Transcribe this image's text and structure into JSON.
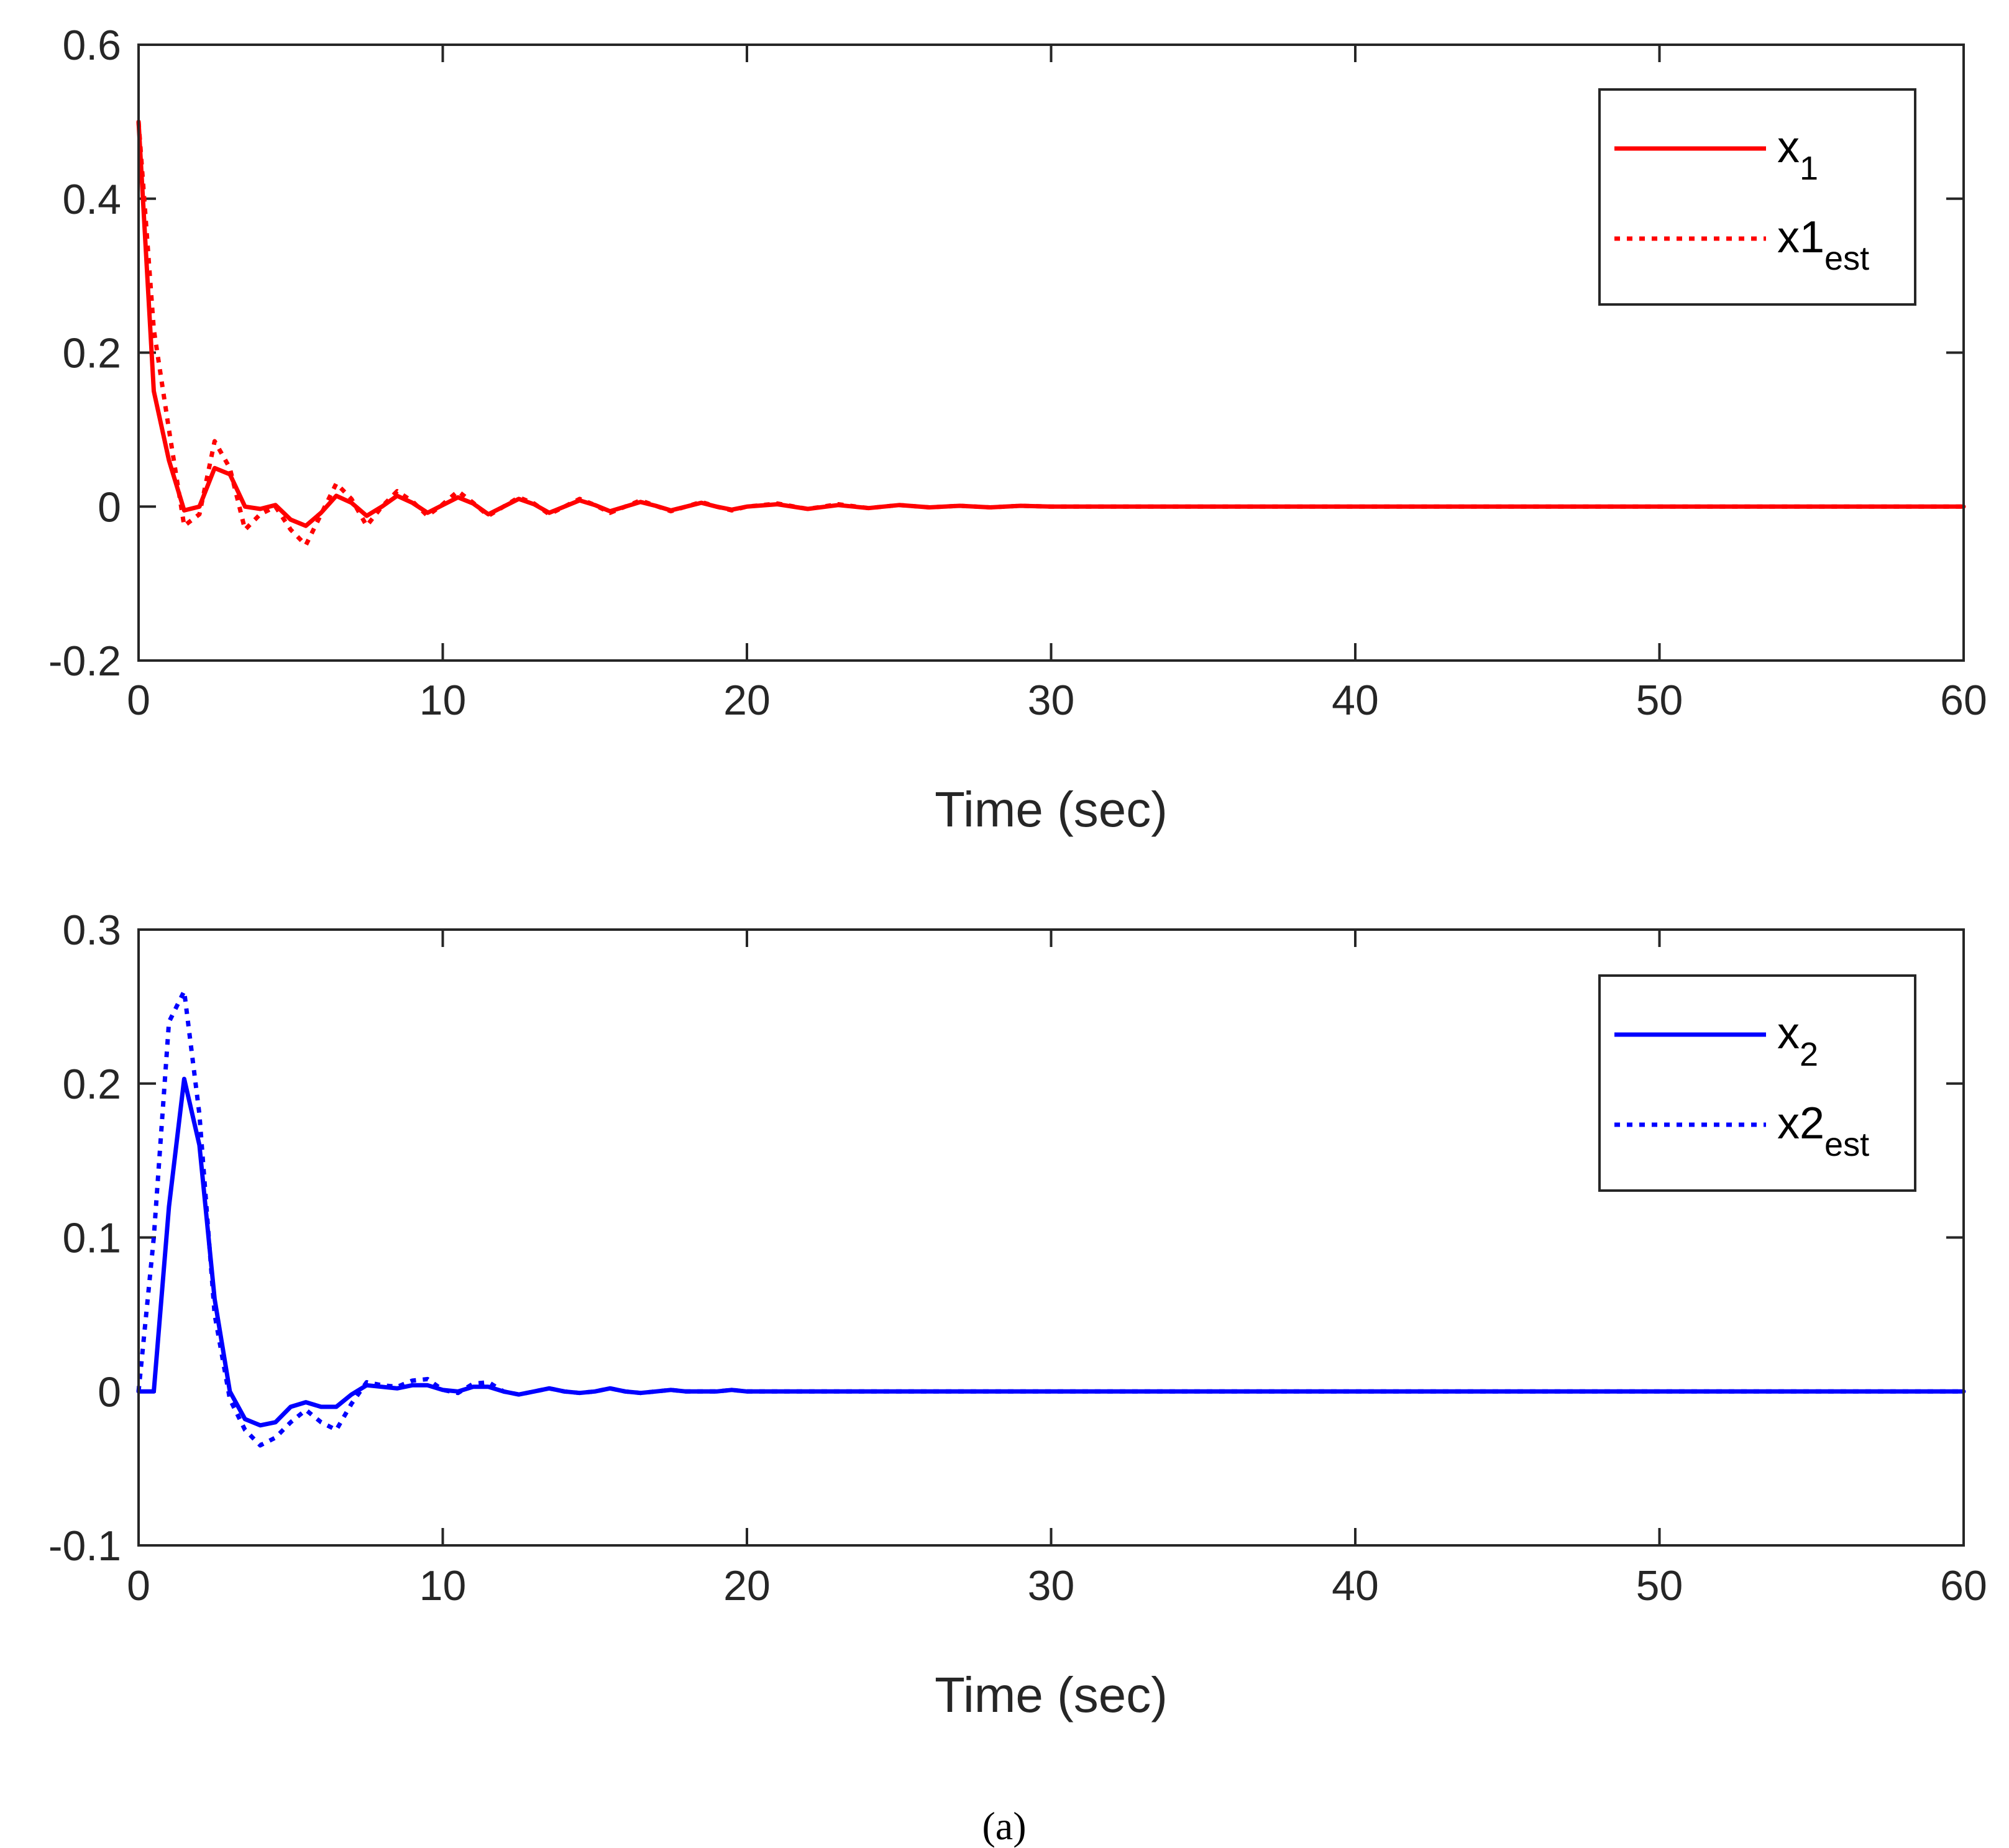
{
  "chart_data": [
    {
      "type": "line",
      "xlabel": "Time (sec)",
      "ylabel": "",
      "xlim": [
        0,
        60
      ],
      "ylim": [
        -0.2,
        0.6
      ],
      "xticks": [
        0,
        10,
        20,
        30,
        40,
        50,
        60
      ],
      "yticks": [
        -0.2,
        0,
        0.2,
        0.4,
        0.6
      ],
      "xtick_labels": [
        "0",
        "10",
        "20",
        "30",
        "40",
        "50",
        "60"
      ],
      "ytick_labels": [
        "-0.2",
        "0",
        "0.2",
        "0.4",
        "0.6"
      ],
      "legend_position": "top-right",
      "series": [
        {
          "name": "x_1",
          "legend_main": "x",
          "legend_sub": "1",
          "color": "#ff0000",
          "style": "solid",
          "x": [
            0,
            0.5,
            1,
            1.5,
            2,
            2.5,
            3,
            3.5,
            4,
            4.5,
            5,
            5.5,
            6,
            6.5,
            7,
            7.5,
            8,
            8.5,
            9,
            9.5,
            10,
            10.5,
            11,
            11.5,
            12,
            12.5,
            13,
            13.5,
            14,
            14.5,
            15,
            15.5,
            16,
            16.5,
            17,
            17.5,
            18,
            18.5,
            19,
            19.5,
            20,
            21,
            22,
            23,
            24,
            25,
            26,
            27,
            28,
            29,
            30,
            35,
            40,
            45,
            50,
            55,
            60
          ],
          "y": [
            0.5,
            0.15,
            0.06,
            -0.005,
            0.0,
            0.05,
            0.042,
            0.0,
            -0.003,
            0.002,
            -0.017,
            -0.025,
            -0.008,
            0.014,
            0.005,
            -0.012,
            0.0,
            0.014,
            0.005,
            -0.008,
            0.002,
            0.012,
            0.004,
            -0.01,
            0.0,
            0.01,
            0.003,
            -0.008,
            0.0,
            0.008,
            0.002,
            -0.006,
            0.0,
            0.006,
            0.001,
            -0.005,
            0.0,
            0.005,
            0.0,
            -0.004,
            0.0,
            0.003,
            -0.003,
            0.002,
            -0.002,
            0.002,
            -0.001,
            0.001,
            -0.001,
            0.001,
            0.0,
            0.0,
            0.0,
            0.0,
            0.0,
            0.0,
            0.0
          ]
        },
        {
          "name": "x1_est",
          "legend_main": "x1",
          "legend_sub": "est",
          "color": "#ff0000",
          "style": "dotted",
          "x": [
            0,
            0.5,
            1,
            1.5,
            2,
            2.5,
            3,
            3.5,
            4,
            4.5,
            5,
            5.5,
            6,
            6.5,
            7,
            7.5,
            8,
            8.5,
            9,
            9.5,
            10,
            10.5,
            11,
            11.5,
            12,
            12.5,
            13,
            13.5,
            14,
            14.5,
            15,
            15.5,
            16,
            16.5,
            17,
            17.5,
            18,
            18.5,
            19,
            19.5,
            20,
            21,
            22,
            23,
            24,
            25,
            26,
            27,
            28,
            29,
            30,
            35,
            40,
            45,
            50,
            55,
            60
          ],
          "y": [
            0.5,
            0.23,
            0.1,
            -0.025,
            -0.01,
            0.085,
            0.05,
            -0.03,
            -0.01,
            0.0,
            -0.03,
            -0.05,
            -0.01,
            0.03,
            0.01,
            -0.025,
            0.0,
            0.02,
            0.007,
            -0.012,
            0.003,
            0.02,
            0.005,
            -0.012,
            0.0,
            0.012,
            0.004,
            -0.01,
            0.0,
            0.01,
            0.002,
            -0.008,
            0.0,
            0.008,
            0.001,
            -0.006,
            0.0,
            0.006,
            0.0,
            -0.005,
            0.0,
            0.004,
            -0.003,
            0.003,
            -0.002,
            0.002,
            -0.001,
            0.001,
            -0.001,
            0.001,
            0.0,
            0.0,
            0.0,
            0.0,
            0.0,
            0.0,
            0.0
          ]
        }
      ]
    },
    {
      "type": "line",
      "xlabel": "Time (sec)",
      "ylabel": "",
      "xlim": [
        0,
        60
      ],
      "ylim": [
        -0.1,
        0.3
      ],
      "xticks": [
        0,
        10,
        20,
        30,
        40,
        50,
        60
      ],
      "yticks": [
        -0.1,
        0,
        0.1,
        0.2,
        0.3
      ],
      "xtick_labels": [
        "0",
        "10",
        "20",
        "30",
        "40",
        "50",
        "60"
      ],
      "ytick_labels": [
        "-0.1",
        "0",
        "0.1",
        "0.2",
        "0.3"
      ],
      "legend_position": "top-right",
      "series": [
        {
          "name": "x_2",
          "legend_main": "x",
          "legend_sub": "2",
          "color": "#0000ff",
          "style": "solid",
          "x": [
            0,
            0.5,
            1,
            1.5,
            2,
            2.5,
            3,
            3.5,
            4,
            4.5,
            5,
            5.5,
            6,
            6.5,
            7,
            7.5,
            8,
            8.5,
            9,
            9.5,
            10,
            10.5,
            11,
            11.5,
            12,
            12.5,
            13,
            13.5,
            14,
            14.5,
            15,
            15.5,
            16,
            16.5,
            17,
            17.5,
            18,
            18.5,
            19,
            19.5,
            20,
            21,
            22,
            23,
            24,
            25,
            26,
            27,
            28,
            29,
            30,
            35,
            40,
            45,
            50,
            55,
            60
          ],
          "y": [
            0.0,
            0.0,
            0.12,
            0.203,
            0.16,
            0.06,
            0.0,
            -0.018,
            -0.022,
            -0.02,
            -0.01,
            -0.007,
            -0.01,
            -0.01,
            -0.002,
            0.004,
            0.003,
            0.002,
            0.004,
            0.004,
            0.001,
            0.0,
            0.003,
            0.003,
            0.0,
            -0.002,
            0.0,
            0.002,
            0.0,
            -0.001,
            0.0,
            0.002,
            0.0,
            -0.001,
            0.0,
            0.001,
            0.0,
            0.0,
            0.0,
            0.001,
            0.0,
            0.0,
            0.0,
            0.0,
            0.0,
            0.0,
            0.0,
            0.0,
            0.0,
            0.0,
            0.0,
            0.0,
            0.0,
            0.0,
            0.0,
            0.0,
            0.0
          ]
        },
        {
          "name": "x2_est",
          "legend_main": "x2",
          "legend_sub": "est",
          "color": "#0000ff",
          "style": "dotted",
          "x": [
            0,
            0.5,
            1,
            1.5,
            2,
            2.5,
            3,
            3.5,
            4,
            4.5,
            5,
            5.5,
            6,
            6.5,
            7,
            7.5,
            8,
            8.5,
            9,
            9.5,
            10,
            10.5,
            11,
            11.5,
            12,
            12.5,
            13,
            13.5,
            14,
            14.5,
            15,
            15.5,
            16,
            16.5,
            17,
            17.5,
            18,
            18.5,
            19,
            19.5,
            20,
            21,
            22,
            23,
            24,
            25,
            26,
            27,
            28,
            29,
            30,
            35,
            40,
            45,
            50,
            55,
            60
          ],
          "y": [
            0.0,
            0.1,
            0.24,
            0.26,
            0.18,
            0.05,
            -0.005,
            -0.025,
            -0.035,
            -0.03,
            -0.02,
            -0.012,
            -0.02,
            -0.025,
            -0.008,
            0.006,
            0.004,
            0.003,
            0.007,
            0.008,
            0.001,
            -0.001,
            0.005,
            0.006,
            0.0,
            -0.002,
            0.0,
            0.002,
            0.0,
            -0.001,
            0.0,
            0.002,
            0.0,
            -0.001,
            0.0,
            0.001,
            0.0,
            0.0,
            0.0,
            0.001,
            0.0,
            0.0,
            0.0,
            0.0,
            0.0,
            0.0,
            0.0,
            0.0,
            0.0,
            0.0,
            0.0,
            0.0,
            0.0,
            0.0,
            0.0,
            0.0,
            0.0
          ]
        }
      ]
    }
  ],
  "caption": "(a)"
}
